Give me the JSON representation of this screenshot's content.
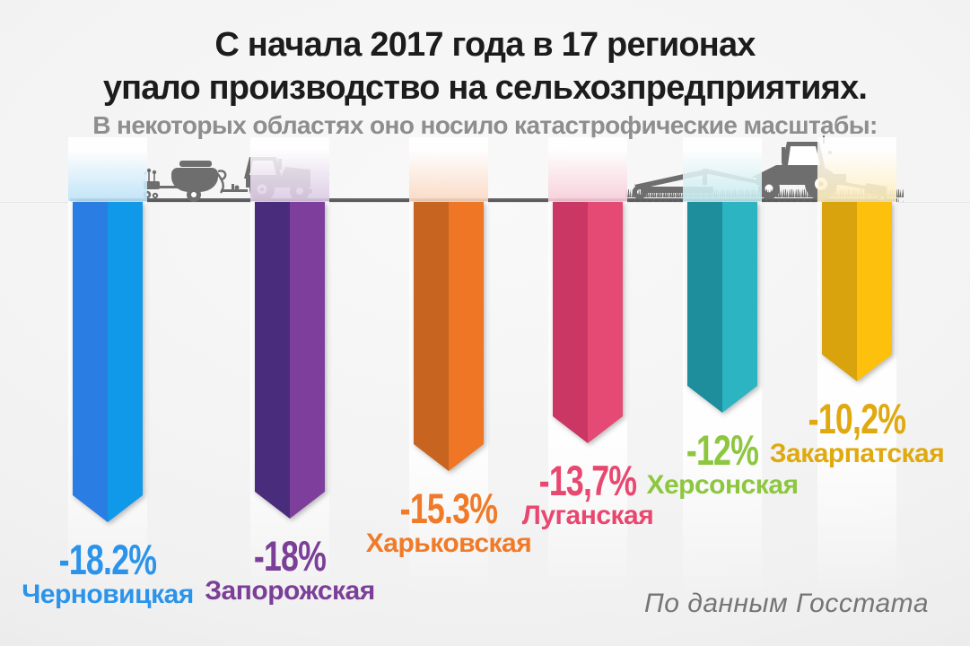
{
  "page": {
    "title_line1": "С начала 2017 года в 17 регионах",
    "title_line2": "упало производство на сельхозпредприятиях.",
    "subtitle": "В некоторых областях оно носило катастрофические масштабы:",
    "source": "По данным Госстата"
  },
  "chart_data": {
    "type": "bar",
    "orientation": "vertical-downward",
    "unit": "%",
    "title": "С начала 2017 года в 17 регионах упало производство на сельхозпредприятиях.",
    "subtitle": "В некоторых областях оно носило катастрофические масштабы:",
    "source": "По данным Госстата",
    "baseline_color": "#54555a",
    "categories": [
      "Черновицкая",
      "Запорожская",
      "Харьковская",
      "Луганская",
      "Херсонская",
      "Закарпатская"
    ],
    "values": [
      -18.2,
      -18,
      -15.3,
      -13.7,
      -12,
      -10.2
    ],
    "value_labels": [
      "-18.2%",
      "-18%",
      "-15.3%",
      "-13,7%",
      "-12%",
      "-10,2%"
    ],
    "bars": [
      {
        "region": "Черновицкая",
        "value": -18.2,
        "label": "-18.2%",
        "color_dark": "#2a7de2",
        "color_light": "#0f99e8",
        "label_color": "#2b94ea"
      },
      {
        "region": "Запорожская",
        "value": -18,
        "label": "-18%",
        "color_dark": "#492c7c",
        "color_light": "#7d3f9b",
        "label_color": "#7b3f98"
      },
      {
        "region": "Харьковская",
        "value": -15.3,
        "label": "-15.3%",
        "color_dark": "#c76420",
        "color_light": "#ee7624",
        "label_color": "#f07a28"
      },
      {
        "region": "Луганская",
        "value": -13.7,
        "label": "-13,7%",
        "color_dark": "#ca3765",
        "color_light": "#e44a73",
        "label_color": "#e8486f"
      },
      {
        "region": "Херсонская",
        "value": -12,
        "label": "-12%",
        "color_dark": "#1e8e9c",
        "color_light": "#2cb4c3",
        "label_color": "#8dc63f"
      },
      {
        "region": "Закарпатская",
        "value": -10.2,
        "label": "-10,2%",
        "color_dark": "#d8a30d",
        "color_light": "#fcc00d",
        "label_color": "#dfa90f"
      }
    ]
  },
  "decor": {
    "tractor_color": "#6e6e6e",
    "left_illustration": "tractor-with-seeder",
    "right_illustration": "tractor-with-harrow-and-grass"
  }
}
